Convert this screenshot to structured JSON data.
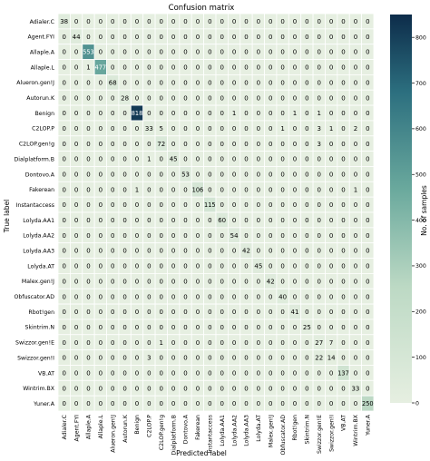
{
  "chart_data": {
    "type": "heatmap",
    "title": "Confusion matrix",
    "xlabel": "Predicted label",
    "ylabel": "True label",
    "colorbar_label": "No. of samples",
    "colorbar_ticks": [
      0,
      100,
      200,
      300,
      400,
      500,
      600,
      700,
      800
    ],
    "vmin": 0,
    "vmax": 850,
    "colors": {
      "low": "#e6efe1",
      "mid": "#8bbfa8",
      "high": "#0d2c4a",
      "cell_border": "#ffffff"
    },
    "labels": [
      "Adialer.C",
      "Agent.FYI",
      "Allaple.A",
      "Allaple.L",
      "Alueron.gen!J",
      "Autorun.K",
      "Benign",
      "C2LOP.P",
      "C2LOP.gen!g",
      "Dialplatform.B",
      "Dontovo.A",
      "Fakerean",
      "Instantaccess",
      "Lolyda.AA1",
      "Lolyda.AA2",
      "Lolyda.AA3",
      "Lolyda.AT",
      "Malex.gen!J",
      "Obfuscator.AD",
      "Rbot!gen",
      "Skintrim.N",
      "Swizzor.gen!E",
      "Swizzor.gen!I",
      "VB.AT",
      "Wintrim.BX",
      "Yuner.A"
    ],
    "matrix": [
      [
        38,
        0,
        0,
        0,
        0,
        0,
        0,
        0,
        0,
        0,
        0,
        0,
        0,
        0,
        0,
        0,
        0,
        0,
        0,
        0,
        0,
        0,
        0,
        0,
        0,
        0
      ],
      [
        0,
        44,
        0,
        0,
        0,
        0,
        0,
        0,
        0,
        0,
        0,
        0,
        0,
        0,
        0,
        0,
        0,
        0,
        0,
        0,
        0,
        0,
        0,
        0,
        0,
        0
      ],
      [
        0,
        0,
        553,
        0,
        0,
        0,
        0,
        0,
        0,
        0,
        0,
        0,
        0,
        0,
        0,
        0,
        0,
        0,
        0,
        0,
        0,
        0,
        0,
        0,
        0,
        0
      ],
      [
        0,
        0,
        1,
        477,
        0,
        0,
        0,
        0,
        0,
        0,
        0,
        0,
        0,
        0,
        0,
        0,
        0,
        0,
        0,
        0,
        0,
        0,
        0,
        0,
        0,
        0
      ],
      [
        0,
        0,
        0,
        0,
        68,
        0,
        0,
        0,
        0,
        0,
        0,
        0,
        0,
        0,
        0,
        0,
        0,
        0,
        0,
        0,
        0,
        0,
        0,
        0,
        0,
        0
      ],
      [
        0,
        0,
        0,
        0,
        0,
        28,
        0,
        0,
        0,
        0,
        0,
        0,
        0,
        0,
        0,
        0,
        0,
        0,
        0,
        0,
        0,
        0,
        0,
        0,
        0,
        0
      ],
      [
        0,
        0,
        0,
        0,
        0,
        0,
        818,
        0,
        0,
        0,
        0,
        0,
        0,
        0,
        1,
        0,
        0,
        0,
        0,
        1,
        0,
        1,
        0,
        0,
        0,
        0
      ],
      [
        0,
        0,
        0,
        0,
        0,
        0,
        0,
        33,
        5,
        0,
        0,
        0,
        0,
        0,
        0,
        0,
        0,
        0,
        1,
        0,
        0,
        3,
        1,
        0,
        2,
        0
      ],
      [
        0,
        0,
        0,
        0,
        0,
        0,
        0,
        0,
        72,
        0,
        0,
        0,
        0,
        0,
        0,
        0,
        0,
        0,
        0,
        0,
        0,
        3,
        0,
        0,
        0,
        0
      ],
      [
        0,
        0,
        0,
        0,
        0,
        0,
        0,
        1,
        0,
        45,
        0,
        0,
        0,
        0,
        0,
        0,
        0,
        0,
        0,
        0,
        0,
        0,
        0,
        0,
        0,
        0
      ],
      [
        0,
        0,
        0,
        0,
        0,
        0,
        0,
        0,
        0,
        0,
        53,
        0,
        0,
        0,
        0,
        0,
        0,
        0,
        0,
        0,
        0,
        0,
        0,
        0,
        0,
        0
      ],
      [
        0,
        0,
        0,
        0,
        0,
        0,
        1,
        0,
        0,
        0,
        0,
        106,
        0,
        0,
        0,
        0,
        0,
        0,
        0,
        0,
        0,
        0,
        0,
        0,
        1,
        0
      ],
      [
        0,
        0,
        0,
        0,
        0,
        0,
        0,
        0,
        0,
        0,
        0,
        0,
        115,
        0,
        0,
        0,
        0,
        0,
        0,
        0,
        0,
        0,
        0,
        0,
        0,
        0
      ],
      [
        0,
        0,
        0,
        0,
        0,
        0,
        0,
        0,
        0,
        0,
        0,
        0,
        0,
        60,
        0,
        0,
        0,
        0,
        0,
        0,
        0,
        0,
        0,
        0,
        0,
        0
      ],
      [
        0,
        0,
        0,
        0,
        0,
        0,
        0,
        0,
        0,
        0,
        0,
        0,
        0,
        0,
        54,
        0,
        0,
        0,
        0,
        0,
        0,
        0,
        0,
        0,
        0,
        0
      ],
      [
        0,
        0,
        0,
        0,
        0,
        0,
        0,
        0,
        0,
        0,
        0,
        0,
        0,
        0,
        0,
        42,
        0,
        0,
        0,
        0,
        0,
        0,
        0,
        0,
        0,
        0
      ],
      [
        0,
        0,
        0,
        0,
        0,
        0,
        0,
        0,
        0,
        0,
        0,
        0,
        0,
        0,
        0,
        0,
        45,
        0,
        0,
        0,
        0,
        0,
        0,
        0,
        0,
        0
      ],
      [
        0,
        0,
        0,
        0,
        0,
        0,
        0,
        0,
        0,
        0,
        0,
        0,
        0,
        0,
        0,
        0,
        0,
        42,
        0,
        0,
        0,
        0,
        0,
        0,
        0,
        0
      ],
      [
        0,
        0,
        0,
        0,
        0,
        0,
        0,
        0,
        0,
        0,
        0,
        0,
        0,
        0,
        0,
        0,
        0,
        0,
        40,
        0,
        0,
        0,
        0,
        0,
        0,
        0
      ],
      [
        0,
        0,
        0,
        0,
        0,
        0,
        0,
        0,
        0,
        0,
        0,
        0,
        0,
        0,
        0,
        0,
        0,
        0,
        0,
        41,
        0,
        0,
        0,
        0,
        0,
        0
      ],
      [
        0,
        0,
        0,
        0,
        0,
        0,
        0,
        0,
        0,
        0,
        0,
        0,
        0,
        0,
        0,
        0,
        0,
        0,
        0,
        0,
        25,
        0,
        0,
        0,
        0,
        0
      ],
      [
        0,
        0,
        0,
        0,
        0,
        0,
        0,
        0,
        1,
        0,
        0,
        0,
        0,
        0,
        0,
        0,
        0,
        0,
        0,
        0,
        0,
        27,
        7,
        0,
        0,
        0
      ],
      [
        0,
        0,
        0,
        0,
        0,
        0,
        0,
        3,
        0,
        0,
        0,
        0,
        0,
        0,
        0,
        0,
        0,
        0,
        0,
        0,
        0,
        22,
        14,
        0,
        0,
        0
      ],
      [
        0,
        0,
        0,
        0,
        0,
        0,
        0,
        0,
        0,
        0,
        0,
        0,
        0,
        0,
        0,
        0,
        0,
        0,
        0,
        0,
        0,
        0,
        0,
        137,
        0,
        0
      ],
      [
        0,
        0,
        0,
        0,
        0,
        0,
        0,
        0,
        0,
        0,
        0,
        0,
        0,
        0,
        0,
        0,
        0,
        0,
        0,
        0,
        0,
        0,
        0,
        0,
        33,
        0
      ],
      [
        0,
        0,
        0,
        0,
        0,
        0,
        0,
        0,
        0,
        0,
        0,
        0,
        0,
        0,
        0,
        0,
        0,
        0,
        0,
        0,
        0,
        0,
        0,
        0,
        0,
        250
      ]
    ],
    "grid": true,
    "legend": "colorbar-right"
  }
}
